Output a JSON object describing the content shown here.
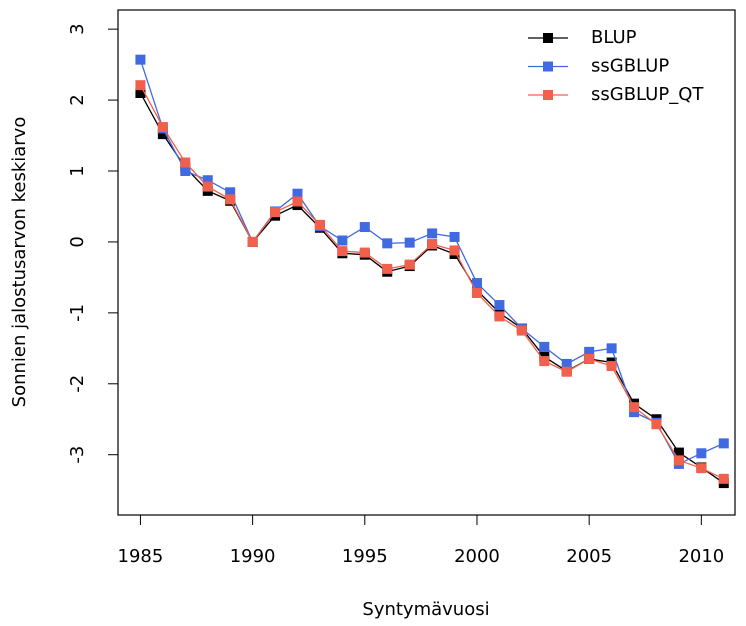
{
  "chart_data": {
    "type": "line",
    "x_label": "Syntymävuosi",
    "y_label": "Sonnien jalostusarvon keskiarvo",
    "x": [
      1985,
      1986,
      1987,
      1988,
      1989,
      1990,
      1991,
      1992,
      1993,
      1994,
      1995,
      1996,
      1997,
      1998,
      1999,
      2000,
      2001,
      2002,
      2003,
      2004,
      2005,
      2006,
      2007,
      2008,
      2009,
      2010,
      2011
    ],
    "series": [
      {
        "name": "BLUP",
        "color": "#000000",
        "values": [
          2.1,
          1.52,
          1.05,
          0.72,
          0.58,
          0,
          0.37,
          0.52,
          0.2,
          -0.16,
          -0.18,
          -0.42,
          -0.34,
          -0.05,
          -0.17,
          -0.68,
          -1.0,
          -1.22,
          -1.62,
          -1.82,
          -1.65,
          -1.7,
          -2.28,
          -2.5,
          -2.97,
          -3.18,
          -3.4
        ]
      },
      {
        "name": "ssGBLUP",
        "color": "#4169e1",
        "values": [
          2.57,
          1.6,
          1.0,
          0.87,
          0.7,
          0,
          0.43,
          0.68,
          0.22,
          0.02,
          0.21,
          -0.02,
          -0.01,
          0.12,
          0.07,
          -0.58,
          -0.89,
          -1.22,
          -1.48,
          -1.72,
          -1.55,
          -1.5,
          -2.4,
          -2.55,
          -3.13,
          -2.98,
          -2.84
        ]
      },
      {
        "name": "ssGBLUP_QT",
        "color": "#f0604d",
        "values": [
          2.21,
          1.62,
          1.12,
          0.78,
          0.6,
          0,
          0.42,
          0.57,
          0.24,
          -0.13,
          -0.15,
          -0.38,
          -0.32,
          -0.03,
          -0.12,
          -0.72,
          -1.05,
          -1.25,
          -1.68,
          -1.83,
          -1.65,
          -1.75,
          -2.33,
          -2.57,
          -3.08,
          -3.19,
          -3.34
        ]
      }
    ],
    "xlim": [
      1984,
      2011.5
    ],
    "xticks": [
      1985,
      1990,
      1995,
      2000,
      2005,
      2010
    ],
    "ylim": [
      -3.85,
      3.27
    ],
    "yticks": [
      -3,
      -2,
      -1,
      0,
      1,
      2,
      3
    ],
    "legend": "top-right"
  }
}
